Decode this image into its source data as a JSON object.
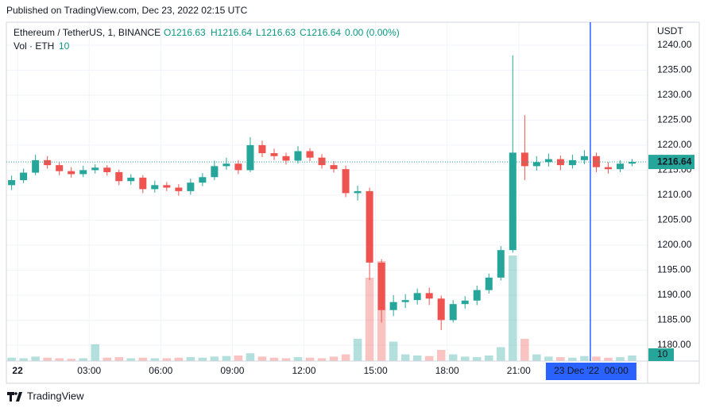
{
  "header": {
    "published": "Published on TradingView.com, Dec 23, 2022 02:15 UTC",
    "footer": "TradingView"
  },
  "chart_data": {
    "type": "candlestick",
    "symbol": "Ethereum / TetherUS, 1, BINANCE",
    "ohlc_legend": [
      "O1216.63",
      "H1216.64",
      "L1216.63",
      "C1216.64",
      "0.00 (0.00%)"
    ],
    "volume_label": "Vol · ETH",
    "last_volume": 10,
    "currency": "USDT",
    "up_color": "#26a69a",
    "down_color": "#ef5350",
    "crosshair_color": "#2962ff",
    "x": [
      -0.25,
      0.25,
      0.75,
      1.25,
      1.75,
      2.25,
      2.75,
      3.25,
      3.75,
      4.25,
      4.75,
      5.25,
      5.75,
      6.25,
      6.75,
      7.25,
      7.75,
      8.25,
      8.75,
      9.25,
      9.75,
      10.25,
      10.75,
      11.25,
      11.75,
      12.25,
      12.75,
      13.25,
      13.75,
      14.25,
      14.75,
      15.25,
      15.75,
      16.25,
      16.75,
      17.25,
      17.75,
      18.25,
      18.75,
      19.25,
      19.75,
      20.25,
      20.75,
      21.25,
      21.75,
      22.25,
      22.75,
      23.25,
      23.75,
      24.25,
      24.75,
      25.25,
      25.75
    ],
    "open": [
      1212.0,
      1213.0,
      1214.5,
      1217.0,
      1216.0,
      1214.8,
      1214.2,
      1215.0,
      1215.5,
      1214.6,
      1212.8,
      1213.5,
      1211.2,
      1212.0,
      1211.5,
      1210.8,
      1212.5,
      1213.6,
      1215.8,
      1216.3,
      1215.0,
      1220.0,
      1218.4,
      1217.8,
      1216.9,
      1218.8,
      1217.5,
      1216.0,
      1215.2,
      1210.4,
      1210.8,
      1196.5,
      1187.0,
      1188.6,
      1189.0,
      1190.4,
      1189.3,
      1185.0,
      1188.2,
      1188.9,
      1191.0,
      1193.5,
      1199.0,
      1218.5,
      1215.8,
      1216.6,
      1217.2,
      1216.0,
      1217.0,
      1217.8,
      1215.6,
      1215.2,
      1216.3
    ],
    "high": [
      1213.9,
      1215.3,
      1218.1,
      1217.8,
      1216.6,
      1215.6,
      1215.9,
      1216.2,
      1216.0,
      1215.1,
      1214.2,
      1214.0,
      1212.9,
      1212.6,
      1212.2,
      1213.3,
      1214.4,
      1216.9,
      1217.5,
      1217.0,
      1221.6,
      1220.9,
      1219.3,
      1218.5,
      1219.8,
      1219.4,
      1218.2,
      1216.8,
      1215.9,
      1211.9,
      1211.5,
      1197.2,
      1190.0,
      1190.2,
      1191.3,
      1191.5,
      1189.9,
      1189.0,
      1189.8,
      1191.9,
      1194.3,
      1199.8,
      1238.0,
      1226.0,
      1217.8,
      1218.3,
      1217.9,
      1218.1,
      1219.0,
      1218.5,
      1216.6,
      1217.0,
      1217.2
    ],
    "low": [
      1211.0,
      1212.4,
      1214.0,
      1215.3,
      1214.0,
      1213.5,
      1213.6,
      1214.3,
      1213.9,
      1212.0,
      1212.1,
      1210.4,
      1210.5,
      1210.8,
      1209.9,
      1210.1,
      1211.8,
      1213.0,
      1215.1,
      1214.2,
      1214.6,
      1217.6,
      1217.0,
      1216.1,
      1216.3,
      1216.8,
      1215.3,
      1214.5,
      1209.6,
      1208.9,
      1193.0,
      1184.5,
      1185.8,
      1187.4,
      1188.1,
      1188.0,
      1183.0,
      1184.5,
      1187.3,
      1188.0,
      1190.3,
      1192.9,
      1198.5,
      1213.0,
      1214.9,
      1215.7,
      1215.0,
      1215.3,
      1216.2,
      1214.6,
      1214.3,
      1214.6,
      1215.8
    ],
    "close": [
      1213.0,
      1214.5,
      1217.0,
      1216.0,
      1214.8,
      1214.2,
      1215.0,
      1215.5,
      1214.6,
      1212.8,
      1213.5,
      1211.2,
      1212.0,
      1211.5,
      1210.8,
      1212.5,
      1213.6,
      1215.8,
      1216.3,
      1215.0,
      1220.0,
      1218.4,
      1217.8,
      1216.9,
      1218.8,
      1217.5,
      1216.0,
      1215.2,
      1210.4,
      1210.8,
      1196.5,
      1187.0,
      1188.6,
      1189.0,
      1190.4,
      1189.3,
      1185.0,
      1188.2,
      1188.9,
      1191.0,
      1193.5,
      1199.0,
      1218.5,
      1215.8,
      1216.6,
      1217.2,
      1216.0,
      1217.0,
      1217.8,
      1215.6,
      1215.2,
      1216.3,
      1216.64
    ],
    "volume": [
      6,
      5,
      8,
      6,
      5,
      4,
      5,
      30,
      6,
      7,
      5,
      6,
      5,
      5,
      6,
      7,
      6,
      8,
      9,
      10,
      14,
      8,
      6,
      5,
      7,
      6,
      5,
      8,
      12,
      40,
      150,
      180,
      35,
      12,
      10,
      9,
      20,
      12,
      8,
      7,
      10,
      25,
      190,
      40,
      12,
      8,
      7,
      6,
      9,
      8,
      6,
      7,
      10
    ],
    "vlim": [
      0,
      200
    ],
    "last_price": 1216.64,
    "xlim": [
      -0.47,
      26.4
    ],
    "xticks": [
      {
        "value": 0,
        "label": "22"
      },
      {
        "value": 3,
        "label": "03:00"
      },
      {
        "value": 6,
        "label": "06:00"
      },
      {
        "value": 9,
        "label": "09:00"
      },
      {
        "value": 12,
        "label": "12:00"
      },
      {
        "value": 15,
        "label": "15:00"
      },
      {
        "value": 18,
        "label": "18:00"
      },
      {
        "value": 21,
        "label": "21:00"
      }
    ],
    "crosshair": {
      "value": 24,
      "label": "23 Dec '22  00:00"
    },
    "ylim": [
      1176.8,
      1244.6
    ],
    "yticks": [
      {
        "value": 1180,
        "label": "1180.00"
      },
      {
        "value": 1185,
        "label": "1185.00"
      },
      {
        "value": 1190,
        "label": "1190.00"
      },
      {
        "value": 1195,
        "label": "1195.00"
      },
      {
        "value": 1200,
        "label": "1200.00"
      },
      {
        "value": 1205,
        "label": "1205.00"
      },
      {
        "value": 1210,
        "label": "1210.00"
      },
      {
        "value": 1215,
        "label": "1215.00"
      },
      {
        "value": 1220,
        "label": "1220.00"
      },
      {
        "value": 1225,
        "label": "1225.00"
      },
      {
        "value": 1230,
        "label": "1230.00"
      },
      {
        "value": 1235,
        "label": "1235.00"
      },
      {
        "value": 1240,
        "label": "1240.00"
      }
    ],
    "grid": true
  }
}
